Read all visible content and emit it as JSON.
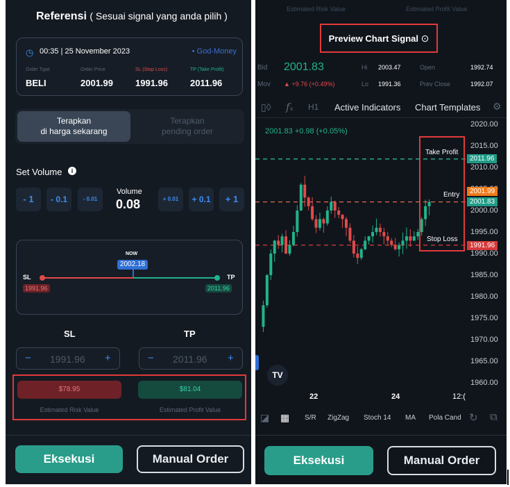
{
  "left": {
    "header_bold": "Referensi",
    "header_sub": "( Sesuai signal yang anda pilih )",
    "signal": {
      "time": "00:35 | 25 November 2023",
      "provider": "• God-Money",
      "cols": [
        {
          "label": "Order Type",
          "value": "BELI"
        },
        {
          "label": "Order Price",
          "value": "2001.99"
        },
        {
          "label": "SL (Stop Loss)",
          "value": "1991.96"
        },
        {
          "label": "TP (Take Profit)",
          "value": "2011.96"
        }
      ]
    },
    "tab_active": "Terapkan di harga sekarang",
    "tab_active_l1": "Terapkan",
    "tab_active_l2": "di harga sekarang",
    "tab_inactive_l1": "Terapkan",
    "tab_inactive_l2": "pending order",
    "set_volume": "Set Volume",
    "vol_minus": [
      "- 1",
      "- 0.1",
      "- 0.01"
    ],
    "vol_plus": [
      "+ 0.01",
      "+ 0.1",
      "+ 1"
    ],
    "vol_label": "Volume",
    "vol_value": "0.08",
    "range": {
      "now_label": "NOW",
      "now_value": "2002.18",
      "sl_label": "SL",
      "tp_label": "TP",
      "sl_value": "1991.96",
      "tp_value": "2011.96"
    },
    "sl_title": "SL",
    "tp_title": "TP",
    "sl_input": "1991.96",
    "tp_input": "2011.96",
    "minus": "−",
    "plus": "+",
    "risk_value": "$78.95",
    "profit_value": "$81.04",
    "risk_label": "Estimated Risk Value",
    "profit_label": "Estimated Profit Value",
    "execute": "Eksekusi",
    "manual": "Manual Order"
  },
  "right": {
    "top_risk": "Estimated Risk Value",
    "top_profit": "Estimated Profit Value",
    "preview": "Preview Chart Signal",
    "quote": {
      "bid_label": "Bid",
      "bid": "2001.83",
      "hi_label": "Hi",
      "hi": "2003.47",
      "open_label": "Open",
      "open": "1992.74",
      "mov_label": "Mov",
      "mov": "▲ +9.76 (+0.49%)",
      "lo_label": "Lo",
      "lo": "1991.36",
      "prev_label": "Prev Close",
      "prev": "1992.07"
    },
    "toolbar": {
      "interval": "H1",
      "indicators": "Active Indicators",
      "templates": "Chart Templates"
    },
    "price_label": "2001.83 +0.98 (+0.05%)",
    "levels": {
      "take_profit": "Take Profit",
      "entry": "Entry",
      "stop_loss": "Stop Loss"
    },
    "tags": {
      "tp": "2011.96",
      "entry1": "2001.99",
      "entry2": "2001.83",
      "sl": "1991.96"
    },
    "y_ticks": [
      "2020.00",
      "2015.00",
      "2010.00",
      "2005.00",
      "2000.00",
      "1995.00",
      "1990.00",
      "1985.00",
      "1980.00",
      "1975.00",
      "1970.00",
      "1965.00",
      "1960.00"
    ],
    "x_ticks": [
      "22",
      "24",
      "12:("
    ],
    "logo": "TV",
    "bottom_tools": [
      "S/R",
      "ZigZag",
      "Stoch 14",
      "MA",
      "Pola Cand"
    ],
    "execute": "Eksekusi",
    "manual": "Manual Order",
    "colors": {
      "up": "#22b38a",
      "down": "#e04a4a",
      "tp_line": "#2ec4a0",
      "entry_line": "#e36b4a",
      "sl_line": "#e03a3a"
    }
  }
}
